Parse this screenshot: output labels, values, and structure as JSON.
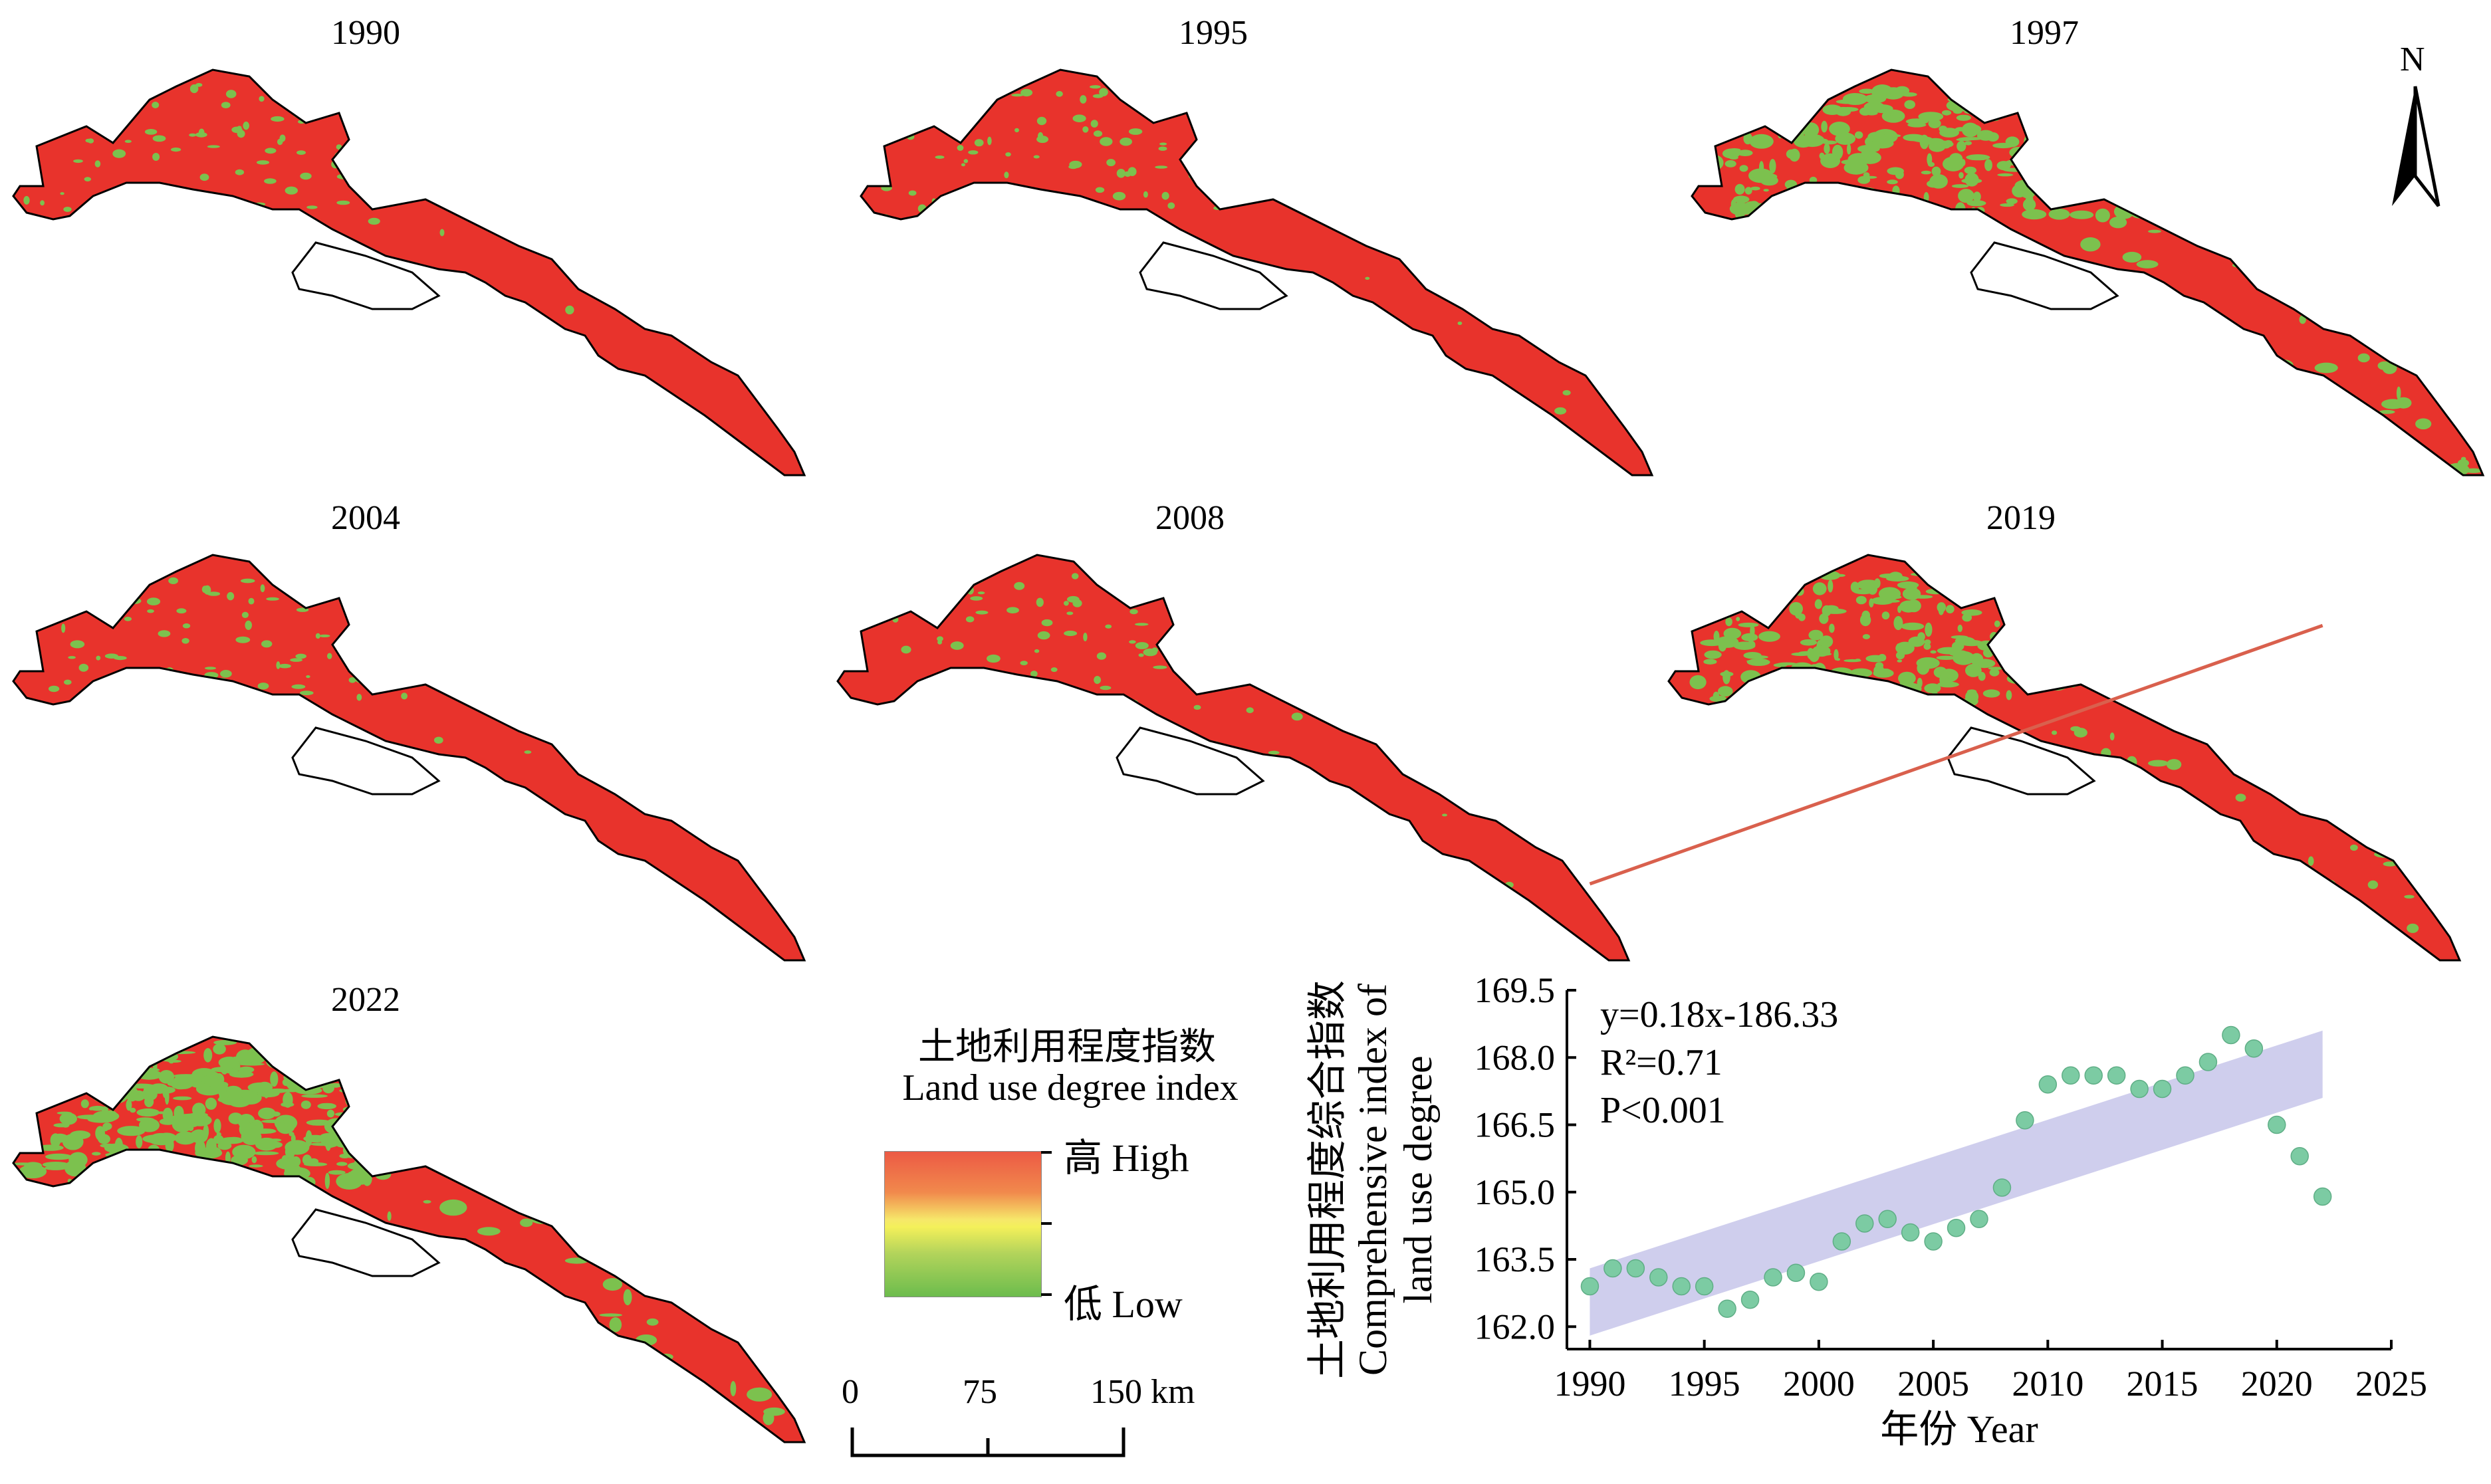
{
  "maps": [
    {
      "year": "1990",
      "green_share": 0.06
    },
    {
      "year": "1995",
      "green_share": 0.07
    },
    {
      "year": "1997",
      "green_share": 0.45
    },
    {
      "year": "2004",
      "green_share": 0.09
    },
    {
      "year": "2008",
      "green_share": 0.08
    },
    {
      "year": "2019",
      "green_share": 0.4
    },
    {
      "year": "2022",
      "green_share": 0.55
    }
  ],
  "north_arrow": {
    "label": "N"
  },
  "legend": {
    "title_cn": "土地利用程度指数",
    "title_en": "Land use degree index",
    "high_label": "高 High",
    "low_label": "低 Low",
    "colors": {
      "high": "#e8332c",
      "mid": "#f6ec5e",
      "low": "#6cbc4d"
    }
  },
  "scale_bar": {
    "labels": [
      "0",
      "75",
      "150 km"
    ]
  },
  "colors": {
    "map_red": "#e8332c",
    "map_green": "#7cc14e",
    "trend": "#d9604d",
    "ci_band": "#c7c5ea",
    "points": "#7ccba3"
  },
  "chart_data": {
    "type": "scatter",
    "ylabel_cn": "土地利用程度综合指数",
    "ylabel_en_1": "Comprehensive index of",
    "ylabel_en_2": "land use degree",
    "xlabel": "年份 Year",
    "xlim": [
      1989,
      2025
    ],
    "ylim": [
      161.5,
      169.5
    ],
    "xticks": [
      1990,
      1995,
      2000,
      2005,
      2010,
      2015,
      2020,
      2025
    ],
    "yticks": [
      162.0,
      163.5,
      165.0,
      166.5,
      168.0,
      169.5
    ],
    "ytick_labels": [
      "162.0",
      "163.5",
      "165.0",
      "166.5",
      "168.0",
      "169.5"
    ],
    "annotation": {
      "equation": "y=0.18x-186.33",
      "r2": "R²=0.71",
      "p": "P<0.001"
    },
    "points": [
      {
        "x": 1990,
        "y": 162.9
      },
      {
        "x": 1991,
        "y": 163.3
      },
      {
        "x": 1992,
        "y": 163.3
      },
      {
        "x": 1993,
        "y": 163.1
      },
      {
        "x": 1994,
        "y": 162.9
      },
      {
        "x": 1995,
        "y": 162.9
      },
      {
        "x": 1996,
        "y": 162.4
      },
      {
        "x": 1997,
        "y": 162.6
      },
      {
        "x": 1998,
        "y": 163.1
      },
      {
        "x": 1999,
        "y": 163.2
      },
      {
        "x": 2000,
        "y": 163.0
      },
      {
        "x": 2001,
        "y": 163.9
      },
      {
        "x": 2002,
        "y": 164.3
      },
      {
        "x": 2003,
        "y": 164.4
      },
      {
        "x": 2004,
        "y": 164.1
      },
      {
        "x": 2005,
        "y": 163.9
      },
      {
        "x": 2006,
        "y": 164.2
      },
      {
        "x": 2007,
        "y": 164.4
      },
      {
        "x": 2008,
        "y": 165.1
      },
      {
        "x": 2009,
        "y": 166.6
      },
      {
        "x": 2010,
        "y": 167.4
      },
      {
        "x": 2011,
        "y": 167.6
      },
      {
        "x": 2012,
        "y": 167.6
      },
      {
        "x": 2013,
        "y": 167.6
      },
      {
        "x": 2014,
        "y": 167.3
      },
      {
        "x": 2015,
        "y": 167.3
      },
      {
        "x": 2016,
        "y": 167.6
      },
      {
        "x": 2017,
        "y": 167.9
      },
      {
        "x": 2018,
        "y": 168.5
      },
      {
        "x": 2019,
        "y": 168.2
      },
      {
        "x": 2020,
        "y": 166.5
      },
      {
        "x": 2021,
        "y": 165.8
      },
      {
        "x": 2022,
        "y": 164.9
      }
    ],
    "trend": {
      "slope": 0.18,
      "intercept": -186.33,
      "x_range": [
        1990,
        2022
      ]
    },
    "ci_band": {
      "x": [
        1990,
        2022
      ],
      "lower": [
        161.8,
        167.1
      ],
      "upper": [
        163.3,
        168.6
      ]
    },
    "grid": false,
    "legend": "none"
  }
}
